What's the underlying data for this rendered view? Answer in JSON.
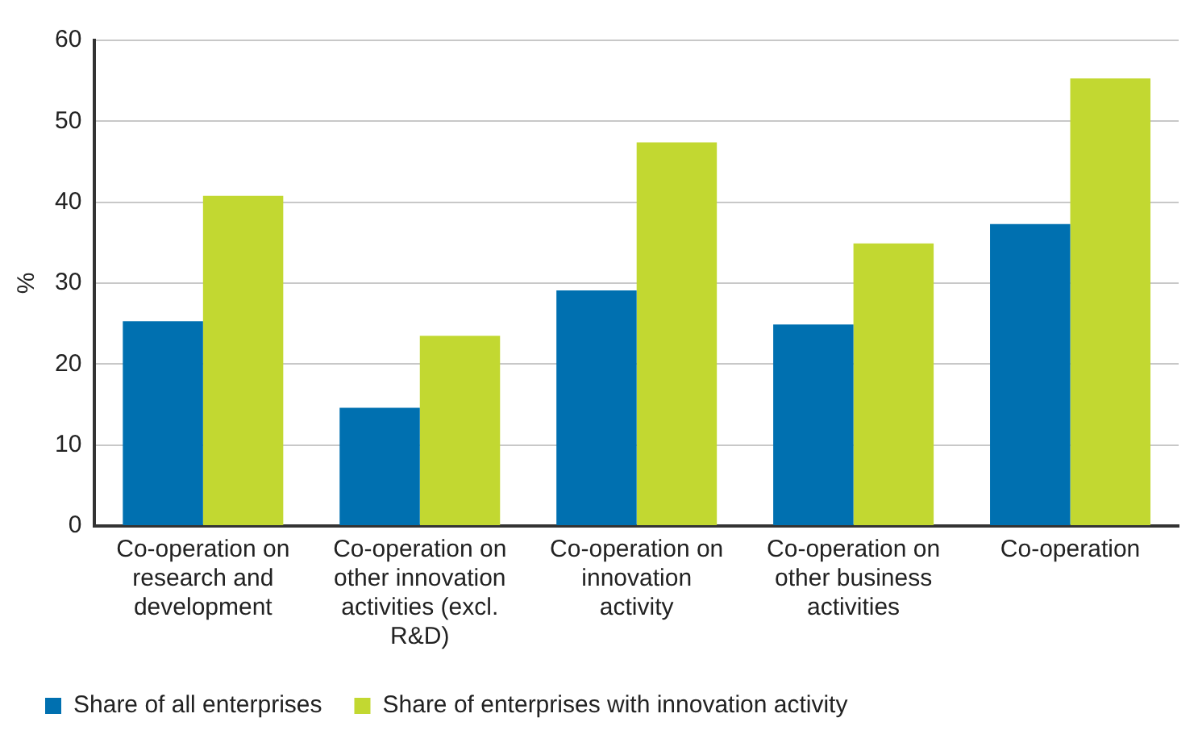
{
  "chart_data": {
    "type": "bar",
    "ylabel": "%",
    "categories": [
      "Co-operation on research and development",
      "Co-operation on other innovation activities (excl. R&D)",
      "Co-operation on innovation activity",
      "Co-operation on other business activities",
      "Co-operation"
    ],
    "series": [
      {
        "name": "Share of all enterprises",
        "color": "#0070b0",
        "values": [
          25.3,
          14.6,
          29.1,
          24.9,
          37.3
        ]
      },
      {
        "name": "Share of enterprises with innovation activity",
        "color": "#c2d831",
        "values": [
          40.8,
          23.5,
          47.4,
          34.9,
          55.3
        ]
      }
    ],
    "ylim": [
      0,
      60
    ],
    "yticks": [
      0,
      10,
      20,
      30,
      40,
      50,
      60
    ],
    "grid": "y",
    "legend": "bottom left"
  }
}
